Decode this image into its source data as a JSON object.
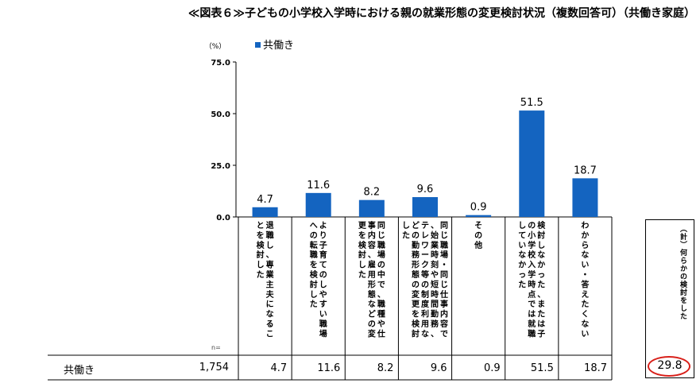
{
  "chart_data": {
    "type": "bar",
    "title": "≪図表６≫子どもの小学校入学時における親の就業形態の変更検討状況（複数回答可）（共働き家庭）",
    "unit_label": "（%）",
    "legend": [
      "共働き"
    ],
    "legend_position": "top-left",
    "ylim": [
      0,
      75
    ],
    "yticks": [
      "0.0",
      "25.0",
      "50.0",
      "75.0"
    ],
    "grid": false,
    "color": "#1464c0",
    "categories": [
      "退職し、専業主夫になることを検討した",
      "より子育てのしやすい職場への転職を検討した",
      "同じ職場の中で、職種や仕事内容、雇用形態などの変更を検討した",
      "同じ職場・同じ仕事内容で、始業時刻や短時間勤務、テレワーク等の制度利用などの勤務形態の変更を検討した",
      "その他",
      "検討しなかった、または子の小学校入学時点では就職していなかった",
      "わからない・答えたくない"
    ],
    "series": [
      {
        "name": "共働き",
        "values": [
          4.7,
          11.6,
          8.2,
          9.6,
          0.9,
          51.5,
          18.7
        ]
      }
    ],
    "n_label": "n=",
    "row": {
      "name": "共働き",
      "n": "1,754",
      "values": [
        "4.7",
        "11.6",
        "8.2",
        "9.6",
        "0.9",
        "51.5",
        "18.7"
      ]
    },
    "total": {
      "label": "（計）何らかの検討をした",
      "value": "29.8",
      "highlight_color": "#d8201a"
    }
  }
}
